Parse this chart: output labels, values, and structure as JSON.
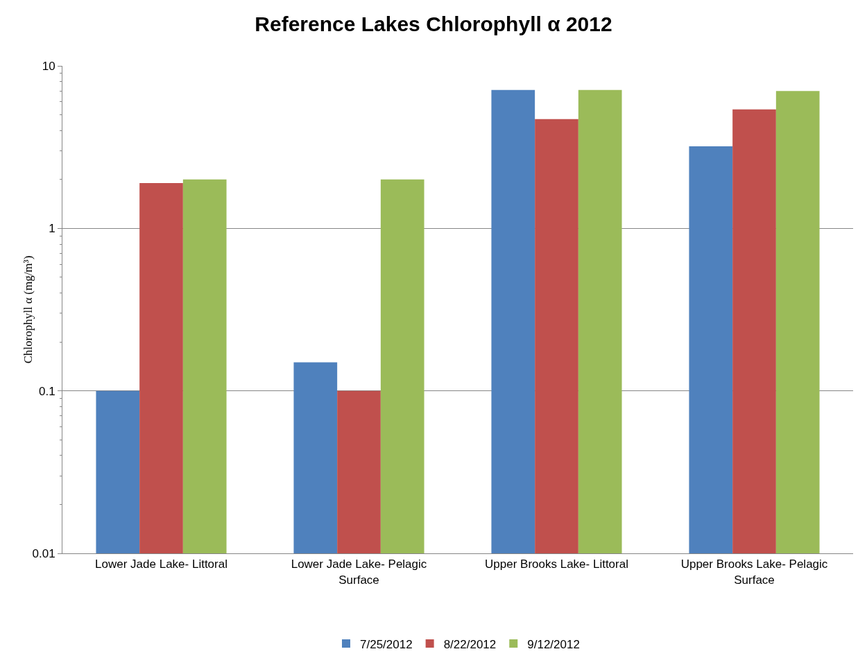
{
  "chart_data": {
    "type": "bar",
    "title": "Reference Lakes Chlorophyll α 2012",
    "ylabel": "Chlorophyll α (mg/m³)",
    "categories": [
      "Lower Jade Lake- Littoral",
      "Lower Jade Lake- Pelagic Surface",
      "Upper Brooks Lake- Littoral",
      "Upper Brooks Lake- Pelagic Surface"
    ],
    "series": [
      {
        "name": "7/25/2012",
        "color": "#4f81bd",
        "values": [
          0.1,
          0.15,
          7.1,
          3.2
        ]
      },
      {
        "name": "8/22/2012",
        "color": "#c0504d",
        "values": [
          1.9,
          0.1,
          4.7,
          5.4
        ]
      },
      {
        "name": "9/12/2012",
        "color": "#9bbb59",
        "values": [
          2.0,
          2.0,
          7.1,
          7.0
        ]
      }
    ],
    "log": "y",
    "ylim": [
      0.01,
      10
    ],
    "yticks": [
      0.01,
      {
        "value": 0.02,
        "label": null
      },
      {
        "value": 0.03,
        "label": null
      },
      {
        "value": 0.04,
        "label": null
      },
      {
        "value": 0.05,
        "label": null
      },
      {
        "value": 0.06,
        "label": null
      },
      {
        "value": 0.07,
        "label": null
      },
      {
        "value": 0.08,
        "label": null
      },
      {
        "value": 0.09,
        "label": null
      },
      0.1,
      {
        "value": 0.2,
        "label": null
      },
      {
        "value": 0.3,
        "label": null
      },
      {
        "value": 0.4,
        "label": null
      },
      {
        "value": 0.5,
        "label": null
      },
      {
        "value": 0.6,
        "label": null
      },
      {
        "value": 0.7,
        "label": null
      },
      {
        "value": 0.8,
        "label": null
      },
      {
        "value": 0.9,
        "label": null
      },
      1,
      {
        "value": 2,
        "label": null
      },
      {
        "value": 3,
        "label": null
      },
      {
        "value": 4,
        "label": null
      },
      {
        "value": 5,
        "label": null
      },
      {
        "value": 6,
        "label": null
      },
      {
        "value": 7,
        "label": null
      },
      {
        "value": 8,
        "label": null
      },
      {
        "value": 9,
        "label": null
      },
      10
    ],
    "grid": "y",
    "legend": "bottom"
  }
}
